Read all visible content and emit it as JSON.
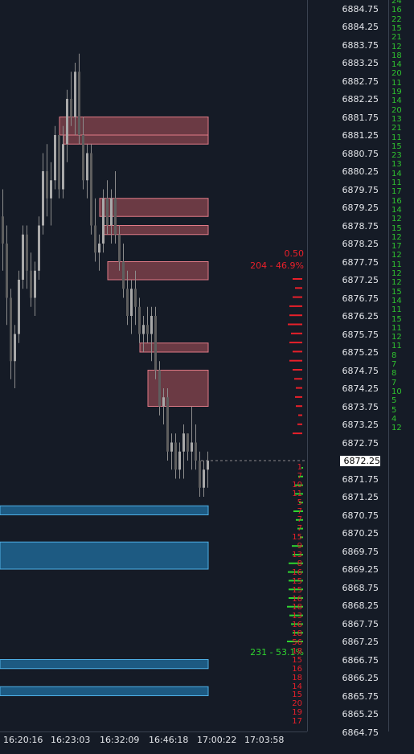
{
  "price_scale": {
    "labels": [
      "6884.75",
      "6884.25",
      "6883.75",
      "6883.25",
      "6882.75",
      "6882.25",
      "6881.75",
      "6881.25",
      "6880.75",
      "6880.25",
      "6879.75",
      "6879.25",
      "6878.75",
      "6878.25",
      "6877.75",
      "6877.25",
      "6876.75",
      "6876.25",
      "6875.75",
      "6875.25",
      "6874.75",
      "6874.25",
      "6873.75",
      "6873.25",
      "6872.75",
      "6872.25",
      "6871.75",
      "6871.25",
      "6870.75",
      "6870.25",
      "6869.75",
      "6869.25",
      "6868.75",
      "6868.25",
      "6867.75",
      "6867.25",
      "6866.75",
      "6866.25",
      "6865.75",
      "6865.25",
      "6864.75"
    ],
    "current_price": "6872.25",
    "current_index": 25
  },
  "time_axis": {
    "labels": [
      "16:20:16",
      "16:23:03",
      "16:32:09",
      "16:46:18",
      "17:00:22",
      "17:03:58"
    ]
  },
  "volume_column": {
    "counts": [
      "24",
      "16",
      "22",
      "15",
      "21",
      "12",
      "18",
      "14",
      "20",
      "11",
      "19",
      "14",
      "20",
      "13",
      "21",
      "11",
      "15",
      "23",
      "13",
      "14",
      "11",
      "17",
      "16",
      "14",
      "12",
      "15",
      "12",
      "17",
      "12",
      "11",
      "12",
      "12",
      "15",
      "14",
      "11",
      "15",
      "11",
      "12",
      "11",
      "8",
      "7",
      "8",
      "7",
      "10",
      "5",
      "5",
      "4",
      "12"
    ]
  },
  "order_flow": {
    "ask_ratio": "0.50",
    "sell_summary": "204 - 46.9%",
    "buy_summary": "231 - 53.1%",
    "sell_bar_lengths": [
      12,
      9,
      12,
      16,
      16,
      18,
      14,
      16,
      12,
      16,
      12,
      10,
      8,
      9,
      8,
      5,
      6,
      12
    ],
    "buy_bar_lengths": [
      2,
      6,
      10,
      10,
      5,
      12,
      9,
      7,
      4,
      14,
      13,
      18,
      19,
      18,
      18,
      18,
      20,
      17,
      15,
      13,
      20
    ],
    "bid_counts": [
      "1",
      "7",
      "10",
      "11",
      "5",
      "7",
      "7",
      "7",
      "15",
      "9",
      "13",
      "8",
      "16",
      "15",
      "15",
      "16",
      "18",
      "13",
      "16",
      "18",
      "56",
      "18",
      "15",
      "16",
      "18",
      "14",
      "15",
      "20",
      "19",
      "17"
    ]
  },
  "colors": {
    "background": "#151b26",
    "up_candle": "#a9a9a9",
    "bearish_zone": "#7a3f4a",
    "bullish_zone": "#1d5a82",
    "sell_bar": "#e8202a",
    "buy_bar": "#2fd42f",
    "volume_text": "#2fc22f"
  },
  "candles": [
    [
      6879.0,
      6879.75,
      6877.5,
      6878.25
    ],
    [
      6878.25,
      6878.75,
      6876.0,
      6876.75
    ],
    [
      6876.75,
      6877.0,
      6874.5,
      6875.0
    ],
    [
      6875.0,
      6876.0,
      6874.25,
      6875.75
    ],
    [
      6875.75,
      6877.5,
      6875.5,
      6877.25
    ],
    [
      6877.25,
      6878.75,
      6877.0,
      6878.5
    ],
    [
      6878.5,
      6878.75,
      6877.0,
      6877.5
    ],
    [
      6877.5,
      6878.0,
      6876.5,
      6876.75
    ],
    [
      6876.75,
      6877.75,
      6876.25,
      6877.5
    ],
    [
      6877.5,
      6879.0,
      6877.25,
      6878.75
    ],
    [
      6878.75,
      6880.75,
      6878.5,
      6880.25
    ],
    [
      6880.25,
      6881.0,
      6879.0,
      6879.5
    ],
    [
      6879.5,
      6880.5,
      6878.75,
      6880.0
    ],
    [
      6880.0,
      6881.5,
      6879.75,
      6881.25
    ],
    [
      6881.25,
      6881.25,
      6879.5,
      6879.75
    ],
    [
      6879.75,
      6881.5,
      6879.5,
      6881.0
    ],
    [
      6881.0,
      6882.5,
      6880.5,
      6882.25
    ],
    [
      6882.25,
      6883.0,
      6881.5,
      6881.75
    ],
    [
      6881.75,
      6883.25,
      6881.25,
      6883.0
    ],
    [
      6883.0,
      6883.5,
      6881.0,
      6881.25
    ],
    [
      6881.25,
      6881.75,
      6879.75,
      6880.0
    ],
    [
      6880.0,
      6881.0,
      6879.5,
      6880.75
    ],
    [
      6880.75,
      6881.0,
      6878.5,
      6878.75
    ],
    [
      6878.75,
      6879.5,
      6877.75,
      6878.0
    ],
    [
      6878.0,
      6878.5,
      6877.5,
      6878.25
    ],
    [
      6878.25,
      6879.75,
      6878.0,
      6879.5
    ],
    [
      6879.5,
      6880.0,
      6878.5,
      6878.75
    ],
    [
      6878.75,
      6879.75,
      6878.25,
      6879.5
    ],
    [
      6879.5,
      6880.25,
      6878.25,
      6878.5
    ],
    [
      6878.5,
      6878.75,
      6877.5,
      6877.75
    ],
    [
      6877.75,
      6878.25,
      6876.75,
      6877.0
    ],
    [
      6877.0,
      6877.5,
      6876.0,
      6876.25
    ],
    [
      6876.25,
      6877.25,
      6875.75,
      6877.0
    ],
    [
      6877.0,
      6877.5,
      6876.0,
      6876.5
    ],
    [
      6876.5,
      6876.75,
      6875.5,
      6875.75
    ],
    [
      6875.75,
      6876.25,
      6875.25,
      6876.0
    ],
    [
      6876.0,
      6876.5,
      6875.5,
      6875.75
    ],
    [
      6875.75,
      6876.5,
      6875.0,
      6876.25
    ],
    [
      6876.25,
      6876.5,
      6874.5,
      6874.75
    ],
    [
      6874.75,
      6875.0,
      6873.5,
      6873.75
    ],
    [
      6873.75,
      6874.25,
      6873.25,
      6874.0
    ],
    [
      6874.0,
      6874.25,
      6872.25,
      6872.5
    ],
    [
      6872.5,
      6873.0,
      6872.0,
      6872.75
    ],
    [
      6872.75,
      6873.0,
      6871.75,
      6872.0
    ],
    [
      6872.0,
      6872.75,
      6871.75,
      6872.5
    ],
    [
      6872.5,
      6873.25,
      6871.75,
      6873.0
    ],
    [
      6873.0,
      6873.0,
      6872.25,
      6872.5
    ],
    [
      6872.5,
      6873.75,
      6872.0,
      6872.75
    ],
    [
      6872.75,
      6873.25,
      6872.0,
      6872.25
    ],
    [
      6872.25,
      6872.5,
      6871.25,
      6871.5
    ],
    [
      6871.5,
      6872.25,
      6871.25,
      6872.0
    ],
    [
      6872.0,
      6872.5,
      6871.5,
      6872.25
    ]
  ]
}
